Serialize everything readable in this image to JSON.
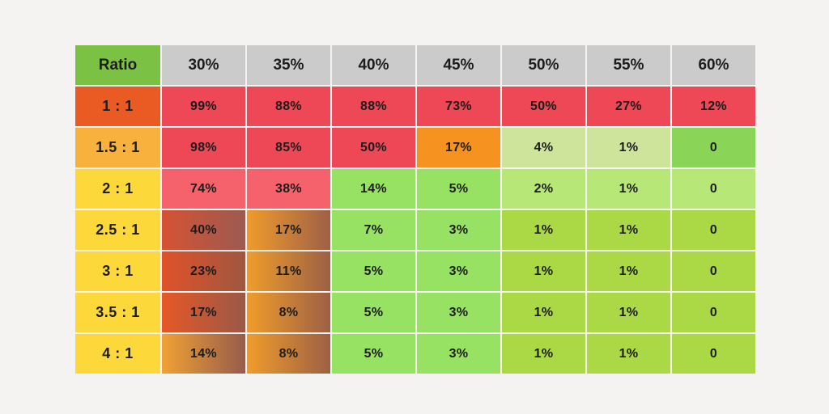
{
  "page": {
    "background": "#f4f3f1",
    "text_color": "#1d1d1d"
  },
  "table": {
    "header": {
      "ratio_label": "Ratio",
      "ratio_bg": "#7bc143",
      "column_bg": "#cbcbcb",
      "columns": [
        "30%",
        "35%",
        "40%",
        "45%",
        "50%",
        "55%",
        "60%"
      ]
    },
    "rows": [
      {
        "label": "1 : 1",
        "label_bg": "#ea5b24",
        "cells": [
          {
            "text": "99%",
            "bg": "#ee4755"
          },
          {
            "text": "88%",
            "bg": "#ee4755"
          },
          {
            "text": "88%",
            "bg": "#ee4755"
          },
          {
            "text": "73%",
            "bg": "#ee4755"
          },
          {
            "text": "50%",
            "bg": "#ee4755"
          },
          {
            "text": "27%",
            "bg": "#ee4755"
          },
          {
            "text": "12%",
            "bg": "#ee4755"
          }
        ]
      },
      {
        "label": "1.5 : 1",
        "label_bg": "#f9b13e",
        "cells": [
          {
            "text": "98%",
            "bg": "#ee4755"
          },
          {
            "text": "85%",
            "bg": "#ee4755"
          },
          {
            "text": "50%",
            "bg": "#ee4755"
          },
          {
            "text": "17%",
            "bg": "#f6921f"
          },
          {
            "text": "4%",
            "bg": "#cde49a"
          },
          {
            "text": "1%",
            "bg": "#cde49a"
          },
          {
            "text": "0",
            "bg": "#8ad458"
          }
        ]
      },
      {
        "label": "2 : 1",
        "label_bg": "#fdd83a",
        "cells": [
          {
            "text": "74%",
            "bg": "#f5626b"
          },
          {
            "text": "38%",
            "bg": "#f5626b"
          },
          {
            "text": "14%",
            "bg": "#97e163"
          },
          {
            "text": "5%",
            "bg": "#97e163"
          },
          {
            "text": "2%",
            "bg": "#b7e877"
          },
          {
            "text": "1%",
            "bg": "#b7e877"
          },
          {
            "text": "0",
            "bg": "#b7e877"
          }
        ]
      },
      {
        "label": "2.5 : 1",
        "label_bg": "#fdd83a",
        "cells": [
          {
            "text": "40%",
            "bg": [
              "#d65233",
              "#9c5a51"
            ]
          },
          {
            "text": "17%",
            "bg": [
              "#f09b2c",
              "#9e6046"
            ]
          },
          {
            "text": "7%",
            "bg": "#97e163"
          },
          {
            "text": "3%",
            "bg": "#97e163"
          },
          {
            "text": "1%",
            "bg": "#aad945"
          },
          {
            "text": "1%",
            "bg": "#aad945"
          },
          {
            "text": "0",
            "bg": "#aad945"
          }
        ]
      },
      {
        "label": "3 : 1",
        "label_bg": "#fdd83a",
        "cells": [
          {
            "text": "23%",
            "bg": [
              "#e0522a",
              "#9f5741"
            ]
          },
          {
            "text": "11%",
            "bg": [
              "#ef9d2c",
              "#9c6044"
            ]
          },
          {
            "text": "5%",
            "bg": "#97e163"
          },
          {
            "text": "3%",
            "bg": "#97e163"
          },
          {
            "text": "1%",
            "bg": "#aad945"
          },
          {
            "text": "1%",
            "bg": "#aad945"
          },
          {
            "text": "0",
            "bg": "#aad945"
          }
        ]
      },
      {
        "label": "3.5 : 1",
        "label_bg": "#fdd83a",
        "cells": [
          {
            "text": "17%",
            "bg": [
              "#e65827",
              "#9b5847"
            ]
          },
          {
            "text": "8%",
            "bg": [
              "#f09c2b",
              "#9d6045"
            ]
          },
          {
            "text": "5%",
            "bg": "#97e163"
          },
          {
            "text": "3%",
            "bg": "#97e163"
          },
          {
            "text": "1%",
            "bg": "#aad945"
          },
          {
            "text": "1%",
            "bg": "#aad945"
          },
          {
            "text": "0",
            "bg": "#aad945"
          }
        ]
      },
      {
        "label": "4 : 1",
        "label_bg": "#fdd83a",
        "cells": [
          {
            "text": "14%",
            "bg": [
              "#f0a134",
              "#975c4c"
            ]
          },
          {
            "text": "8%",
            "bg": [
              "#f09c2b",
              "#9d6045"
            ]
          },
          {
            "text": "5%",
            "bg": "#97e163"
          },
          {
            "text": "3%",
            "bg": "#97e163"
          },
          {
            "text": "1%",
            "bg": "#aad945"
          },
          {
            "text": "1%",
            "bg": "#aad945"
          },
          {
            "text": "0",
            "bg": "#aad945"
          }
        ]
      }
    ]
  },
  "chart_data": {
    "type": "heatmap",
    "corner_label": "Ratio",
    "x_categories": [
      "30%",
      "35%",
      "40%",
      "45%",
      "50%",
      "55%",
      "60%"
    ],
    "y_categories": [
      "1 : 1",
      "1.5 : 1",
      "2 : 1",
      "2.5 : 1",
      "3 : 1",
      "3.5 : 1",
      "4 : 1"
    ],
    "values": [
      [
        99,
        88,
        88,
        73,
        50,
        27,
        12
      ],
      [
        98,
        85,
        50,
        17,
        4,
        1,
        0
      ],
      [
        74,
        38,
        14,
        5,
        2,
        1,
        0
      ],
      [
        40,
        17,
        7,
        3,
        1,
        1,
        0
      ],
      [
        23,
        11,
        5,
        3,
        1,
        1,
        0
      ],
      [
        17,
        8,
        5,
        3,
        1,
        1,
        0
      ],
      [
        14,
        8,
        5,
        3,
        1,
        1,
        0
      ]
    ],
    "value_unit": "%",
    "notes": "Nonzero values rendered with % suffix; zero rendered as 0. Cell colors encode risk from red (high) through orange/gradient to green (low).",
    "legend_position": "none",
    "grid": "2px light gaps between cells"
  }
}
